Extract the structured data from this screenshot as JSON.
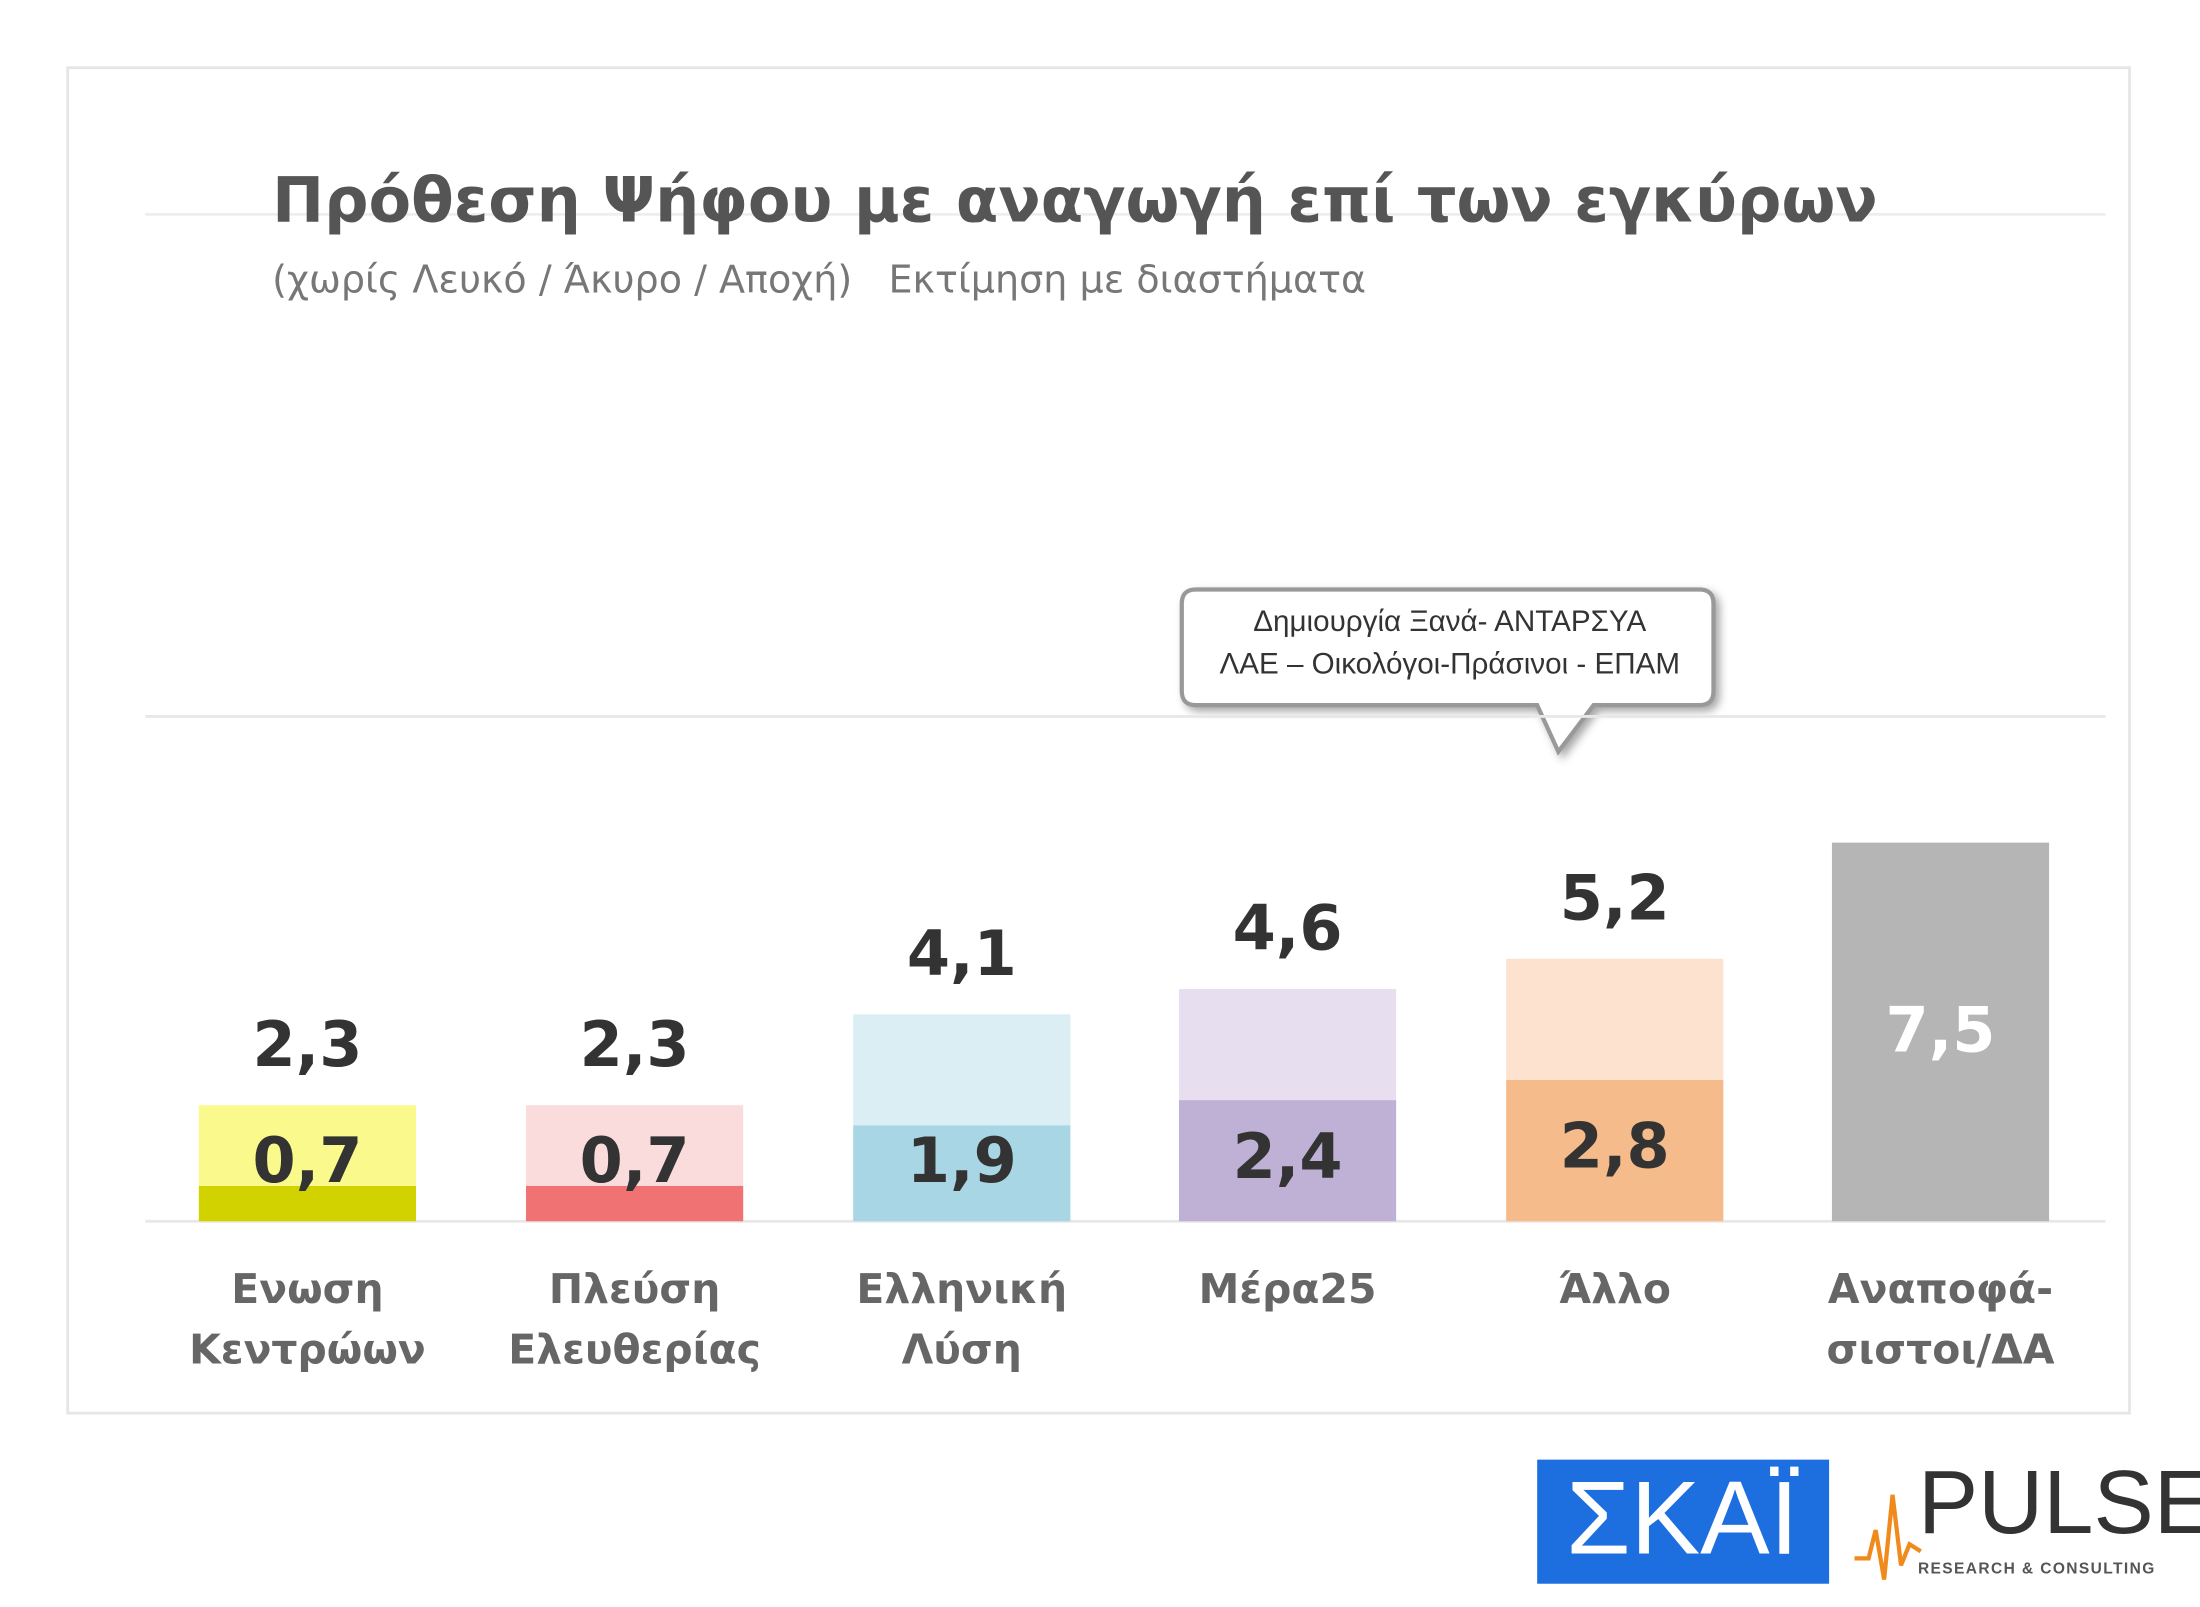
{
  "chart_data": {
    "type": "range_bar",
    "title": "Πρόθεση Ψήφου με αναγωγή επί των εγκύρων",
    "subtitle": "(χωρίς Λευκό / Άκυρο / Αποχή)   Εκτίμηση με διαστήματα",
    "categories": [
      "Ενωση\nΚεντρώων",
      "Πλεύση\nΕλευθερίας",
      "Ελληνική\nΛύση",
      "Μέρα25",
      "Άλλο",
      "Αναποφά-\nσιστοι/ΔΑ"
    ],
    "series": [
      {
        "values": [
          0.7,
          0.7,
          1.9,
          2.4,
          2.8,
          null
        ],
        "value_labels": [
          "0,7",
          "0,7",
          "1,9",
          "2,4",
          "2,8",
          null
        ]
      },
      {
        "values": [
          2.3,
          2.3,
          4.1,
          4.6,
          5.2,
          7.5
        ],
        "value_labels": [
          "2,3",
          "2,3",
          "4,1",
          "4,6",
          "5,2",
          "7,5"
        ]
      }
    ],
    "low_colors": [
      "#d2d200",
      "#f07272",
      "#a9d6e4",
      "#bfb1d5",
      "#f6bb8b",
      "#b5b5b5"
    ],
    "high_colors": [
      "#fafa8c",
      "#fadcdc",
      "#dbeef4",
      "#e7dff0",
      "#fde3cf",
      "#b5b5b5"
    ],
    "ylim": [
      0,
      10
    ],
    "annotation": [
      "Δημιουργία Ξανά-  ΑΝΤΑΡΣΥΑ",
      "ΛΑΕ – Οικολόγοι-Πράσινοι - ΕΠΑΜ"
    ]
  },
  "logos": {
    "channel": "ΣΚΑΪ",
    "pollster": "PULSE",
    "pollster_tagline": "RESEARCH & CONSULTING"
  }
}
